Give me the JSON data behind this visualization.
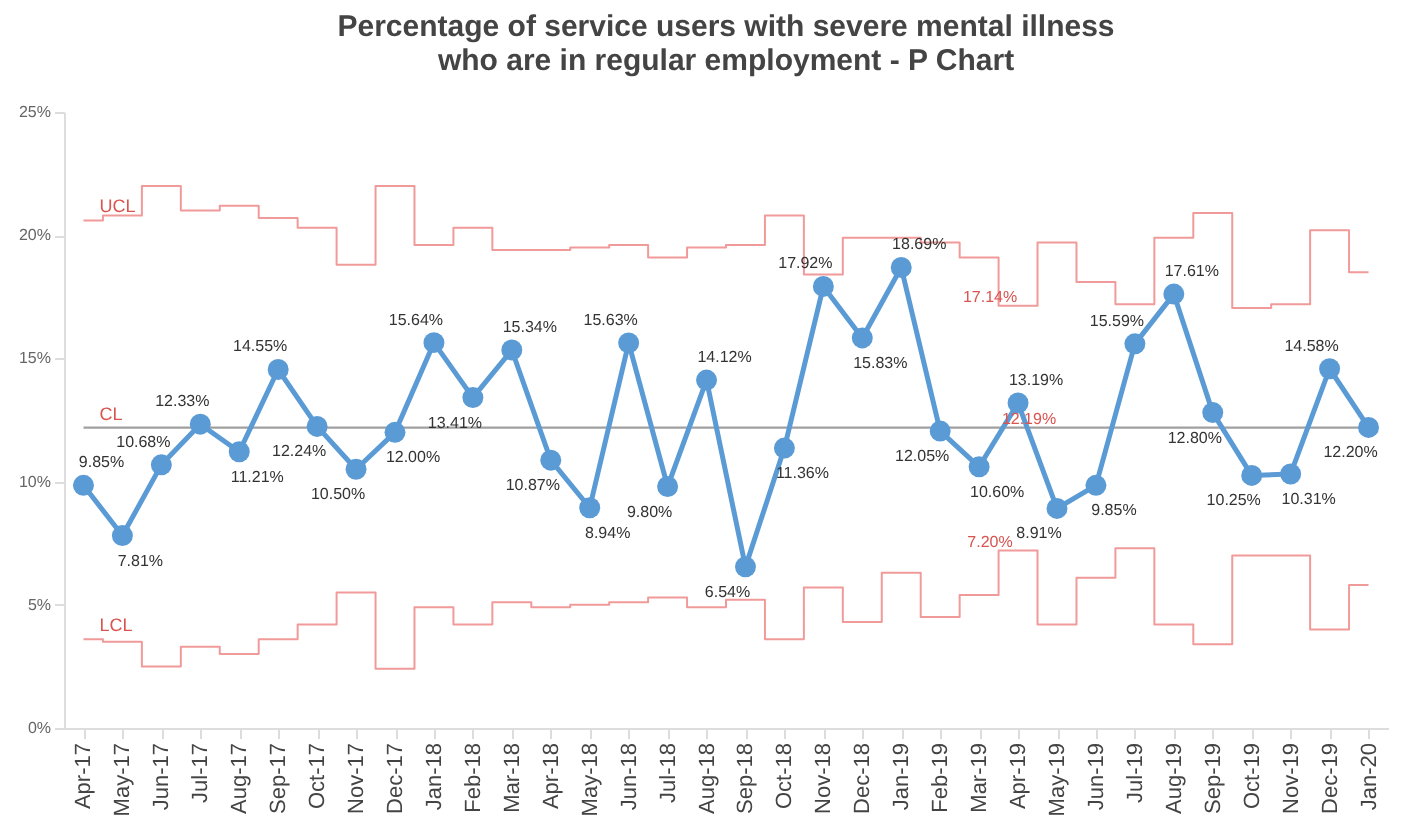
{
  "chart_data": {
    "type": "line",
    "title": [
      "Percentage of service users with severe mental illness",
      "who are in regular employment - P Chart"
    ],
    "categories": [
      "Apr-17",
      "May-17",
      "Jun-17",
      "Jul-17",
      "Aug-17",
      "Sep-17",
      "Oct-17",
      "Nov-17",
      "Dec-17",
      "Jan-18",
      "Feb-18",
      "Mar-18",
      "Apr-18",
      "May-18",
      "Jun-18",
      "Jul-18",
      "Aug-18",
      "Sep-18",
      "Oct-18",
      "Nov-18",
      "Dec-18",
      "Jan-19",
      "Feb-19",
      "Mar-19",
      "Apr-19",
      "May-19",
      "Jun-19",
      "Jul-19",
      "Aug-19",
      "Sep-19",
      "Oct-19",
      "Nov-19",
      "Dec-19",
      "Jan-20"
    ],
    "series": [
      {
        "name": "UCL",
        "type": "step",
        "color": "#f19a9a",
        "values": [
          20.6,
          20.8,
          22.0,
          21.0,
          21.2,
          20.7,
          20.3,
          18.8,
          22.0,
          19.6,
          20.3,
          19.4,
          19.4,
          19.5,
          19.6,
          19.1,
          19.5,
          19.6,
          20.8,
          18.4,
          19.9,
          19.9,
          19.7,
          19.1,
          17.14,
          19.7,
          18.1,
          17.2,
          19.9,
          20.9,
          17.05,
          17.2,
          20.2,
          18.5
        ]
      },
      {
        "name": "CL",
        "type": "line",
        "color": "#a0a0a0",
        "values": [
          12.19,
          12.19,
          12.19,
          12.19,
          12.19,
          12.19,
          12.19,
          12.19,
          12.19,
          12.19,
          12.19,
          12.19,
          12.19,
          12.19,
          12.19,
          12.19,
          12.19,
          12.19,
          12.19,
          12.19,
          12.19,
          12.19,
          12.19,
          12.19,
          12.19,
          12.19,
          12.19,
          12.19,
          12.19,
          12.19,
          12.19,
          12.19,
          12.19,
          12.19
        ]
      },
      {
        "name": "LCL",
        "type": "step",
        "color": "#f19a9a",
        "values": [
          3.6,
          3.5,
          2.5,
          3.3,
          3.0,
          3.6,
          4.2,
          5.5,
          2.4,
          4.9,
          4.2,
          5.1,
          4.9,
          5.0,
          5.1,
          5.3,
          4.9,
          5.2,
          3.6,
          5.7,
          4.3,
          6.3,
          4.5,
          5.4,
          7.2,
          4.2,
          6.1,
          7.3,
          4.2,
          3.4,
          7.0,
          7.0,
          4.0,
          5.8
        ]
      },
      {
        "color": "#5b9bd5",
        "marker": "circle",
        "values": [
          9.85,
          7.81,
          10.68,
          12.33,
          11.21,
          14.55,
          12.24,
          10.5,
          12.0,
          15.64,
          13.41,
          15.34,
          10.87,
          8.94,
          15.63,
          9.8,
          14.12,
          6.54,
          11.36,
          17.92,
          15.83,
          18.69,
          12.05,
          10.6,
          13.19,
          8.91,
          9.85,
          15.59,
          17.61,
          12.8,
          10.25,
          10.31,
          14.58,
          12.2
        ],
        "value_labels": [
          "9.85%",
          "7.81%",
          "10.68%",
          "12.33%",
          "11.21%",
          "14.55%",
          "12.24%",
          "10.50%",
          "12.00%",
          "15.64%",
          "13.41%",
          "15.34%",
          "10.87%",
          "8.94%",
          "15.63%",
          "9.80%",
          "14.12%",
          "6.54%",
          "11.36%",
          "17.92%",
          "15.83%",
          "18.69%",
          "12.05%",
          "10.60%",
          "13.19%",
          "8.91%",
          "9.85%",
          "15.59%",
          "17.61%",
          "12.80%",
          "10.25%",
          "10.31%",
          "14.58%",
          "12.20%"
        ]
      }
    ],
    "annotations": [
      {
        "text": "17.14%",
        "x": "Apr-19",
        "y": 17.14
      },
      {
        "text": "12.19%",
        "x": "May-19",
        "y": 12.19
      },
      {
        "text": "7.20%",
        "x": "Apr-19",
        "y": 7.2
      }
    ],
    "ylim": [
      0,
      25
    ],
    "yticks": [
      {
        "value": 0,
        "label": "0%"
      },
      {
        "value": 5,
        "label": "5%"
      },
      {
        "value": 10,
        "label": "10%"
      },
      {
        "value": 15,
        "label": "15%"
      },
      {
        "value": 20,
        "label": "20%"
      },
      {
        "value": 25,
        "label": "25%"
      }
    ],
    "grid": false
  }
}
